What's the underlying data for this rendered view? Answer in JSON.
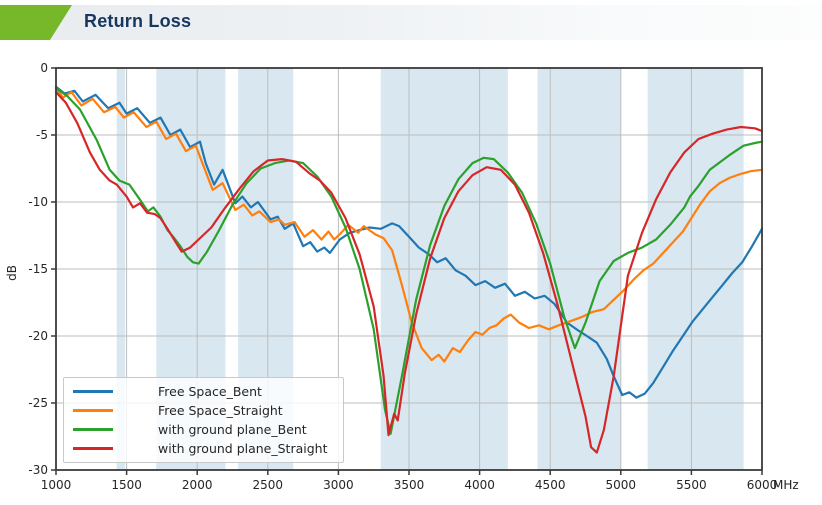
{
  "header": {
    "title": "Return Loss",
    "accent_color": "#76b82a",
    "title_color": "#17375e"
  },
  "chart_data": {
    "type": "line",
    "title": "Return Loss",
    "ylabel": "dB",
    "x_unit": "MHz",
    "xlim": [
      1000,
      6000
    ],
    "ylim": [
      -30,
      0
    ],
    "x_ticks": [
      1000,
      1500,
      2000,
      2500,
      3000,
      3500,
      4000,
      4500,
      5000,
      5500,
      6000
    ],
    "y_ticks": [
      0,
      -5,
      -10,
      -15,
      -20,
      -25,
      -30
    ],
    "grid": true,
    "grid_color": "#bdbdbd",
    "frame_color": "#3a3a3a",
    "band_color": "#d9e7f0",
    "bands_mhz": [
      [
        1430,
        1490
      ],
      [
        1710,
        2200
      ],
      [
        2290,
        2680
      ],
      [
        3300,
        4200
      ],
      [
        4410,
        5000
      ],
      [
        5190,
        5870
      ]
    ],
    "legend_position": "lower left",
    "series": [
      {
        "name": "Free Space_Bent",
        "color": "#1f77b4",
        "points": [
          [
            1000,
            -1.4
          ],
          [
            1060,
            -1.9
          ],
          [
            1130,
            -1.7
          ],
          [
            1190,
            -2.5
          ],
          [
            1280,
            -2.0
          ],
          [
            1370,
            -3.0
          ],
          [
            1450,
            -2.6
          ],
          [
            1500,
            -3.4
          ],
          [
            1575,
            -3.0
          ],
          [
            1665,
            -4.1
          ],
          [
            1740,
            -3.7
          ],
          [
            1810,
            -5.0
          ],
          [
            1880,
            -4.6
          ],
          [
            1950,
            -5.9
          ],
          [
            2020,
            -5.5
          ],
          [
            2060,
            -7.1
          ],
          [
            2120,
            -8.7
          ],
          [
            2180,
            -7.6
          ],
          [
            2270,
            -10.1
          ],
          [
            2320,
            -9.6
          ],
          [
            2380,
            -10.4
          ],
          [
            2430,
            -10.0
          ],
          [
            2520,
            -11.3
          ],
          [
            2570,
            -11.1
          ],
          [
            2620,
            -12.0
          ],
          [
            2680,
            -11.6
          ],
          [
            2750,
            -13.3
          ],
          [
            2800,
            -13.0
          ],
          [
            2850,
            -13.7
          ],
          [
            2900,
            -13.4
          ],
          [
            2940,
            -13.8
          ],
          [
            3010,
            -12.8
          ],
          [
            3080,
            -12.3
          ],
          [
            3150,
            -12.1
          ],
          [
            3220,
            -11.9
          ],
          [
            3300,
            -12.0
          ],
          [
            3380,
            -11.6
          ],
          [
            3430,
            -11.8
          ],
          [
            3500,
            -12.6
          ],
          [
            3570,
            -13.4
          ],
          [
            3640,
            -13.9
          ],
          [
            3700,
            -14.5
          ],
          [
            3760,
            -14.2
          ],
          [
            3830,
            -15.1
          ],
          [
            3900,
            -15.5
          ],
          [
            3970,
            -16.2
          ],
          [
            4040,
            -15.9
          ],
          [
            4110,
            -16.4
          ],
          [
            4180,
            -16.1
          ],
          [
            4250,
            -17.0
          ],
          [
            4320,
            -16.7
          ],
          [
            4390,
            -17.2
          ],
          [
            4460,
            -17.0
          ],
          [
            4530,
            -17.6
          ],
          [
            4620,
            -19.0
          ],
          [
            4700,
            -19.6
          ],
          [
            4760,
            -20.0
          ],
          [
            4830,
            -20.5
          ],
          [
            4900,
            -21.7
          ],
          [
            4950,
            -23.0
          ],
          [
            5010,
            -24.4
          ],
          [
            5060,
            -24.2
          ],
          [
            5110,
            -24.6
          ],
          [
            5170,
            -24.3
          ],
          [
            5230,
            -23.5
          ],
          [
            5300,
            -22.3
          ],
          [
            5370,
            -21.1
          ],
          [
            5440,
            -20.0
          ],
          [
            5510,
            -18.9
          ],
          [
            5580,
            -18.0
          ],
          [
            5650,
            -17.1
          ],
          [
            5720,
            -16.2
          ],
          [
            5790,
            -15.3
          ],
          [
            5860,
            -14.5
          ],
          [
            5930,
            -13.3
          ],
          [
            6000,
            -12.0
          ]
        ]
      },
      {
        "name": "Free Space_Straight",
        "color": "#ff7f0e",
        "points": [
          [
            1000,
            -1.5
          ],
          [
            1050,
            -2.2
          ],
          [
            1110,
            -1.8
          ],
          [
            1180,
            -2.8
          ],
          [
            1260,
            -2.3
          ],
          [
            1340,
            -3.3
          ],
          [
            1420,
            -2.9
          ],
          [
            1480,
            -3.7
          ],
          [
            1550,
            -3.3
          ],
          [
            1640,
            -4.4
          ],
          [
            1710,
            -4.0
          ],
          [
            1780,
            -5.3
          ],
          [
            1850,
            -4.9
          ],
          [
            1920,
            -6.2
          ],
          [
            1990,
            -5.8
          ],
          [
            2030,
            -6.9
          ],
          [
            2110,
            -9.1
          ],
          [
            2180,
            -8.6
          ],
          [
            2270,
            -10.6
          ],
          [
            2330,
            -10.2
          ],
          [
            2390,
            -11.0
          ],
          [
            2440,
            -10.7
          ],
          [
            2520,
            -11.5
          ],
          [
            2580,
            -11.3
          ],
          [
            2620,
            -11.7
          ],
          [
            2690,
            -11.5
          ],
          [
            2760,
            -12.6
          ],
          [
            2820,
            -12.1
          ],
          [
            2880,
            -12.8
          ],
          [
            2930,
            -12.2
          ],
          [
            2970,
            -12.8
          ],
          [
            3020,
            -12.3
          ],
          [
            3070,
            -11.7
          ],
          [
            3140,
            -12.3
          ],
          [
            3180,
            -11.8
          ],
          [
            3260,
            -12.4
          ],
          [
            3320,
            -12.7
          ],
          [
            3380,
            -13.6
          ],
          [
            3450,
            -16.2
          ],
          [
            3520,
            -19.0
          ],
          [
            3590,
            -20.9
          ],
          [
            3660,
            -21.8
          ],
          [
            3710,
            -21.4
          ],
          [
            3750,
            -21.9
          ],
          [
            3810,
            -20.9
          ],
          [
            3860,
            -21.2
          ],
          [
            3920,
            -20.3
          ],
          [
            3970,
            -19.7
          ],
          [
            4020,
            -19.9
          ],
          [
            4070,
            -19.4
          ],
          [
            4120,
            -19.2
          ],
          [
            4170,
            -18.7
          ],
          [
            4220,
            -18.4
          ],
          [
            4280,
            -19.0
          ],
          [
            4350,
            -19.4
          ],
          [
            4420,
            -19.2
          ],
          [
            4490,
            -19.5
          ],
          [
            4560,
            -19.2
          ],
          [
            4640,
            -18.9
          ],
          [
            4720,
            -18.6
          ],
          [
            4800,
            -18.2
          ],
          [
            4880,
            -18.0
          ],
          [
            4950,
            -17.3
          ],
          [
            5020,
            -16.6
          ],
          [
            5090,
            -15.8
          ],
          [
            5160,
            -15.1
          ],
          [
            5230,
            -14.6
          ],
          [
            5300,
            -13.8
          ],
          [
            5370,
            -13.0
          ],
          [
            5440,
            -12.2
          ],
          [
            5500,
            -11.2
          ],
          [
            5560,
            -10.2
          ],
          [
            5630,
            -9.2
          ],
          [
            5700,
            -8.6
          ],
          [
            5770,
            -8.2
          ],
          [
            5850,
            -7.9
          ],
          [
            5920,
            -7.7
          ],
          [
            6000,
            -7.6
          ]
        ]
      },
      {
        "name": "with ground plane_Bent",
        "color": "#2ca02c",
        "points": [
          [
            1000,
            -1.5
          ],
          [
            1080,
            -2.1
          ],
          [
            1170,
            -3.1
          ],
          [
            1290,
            -5.4
          ],
          [
            1380,
            -7.6
          ],
          [
            1450,
            -8.4
          ],
          [
            1520,
            -8.7
          ],
          [
            1600,
            -9.9
          ],
          [
            1650,
            -10.7
          ],
          [
            1690,
            -10.4
          ],
          [
            1740,
            -11.1
          ],
          [
            1790,
            -12.1
          ],
          [
            1830,
            -12.6
          ],
          [
            1880,
            -13.3
          ],
          [
            1930,
            -14.1
          ],
          [
            1970,
            -14.5
          ],
          [
            2010,
            -14.6
          ],
          [
            2070,
            -13.7
          ],
          [
            2150,
            -12.2
          ],
          [
            2250,
            -10.2
          ],
          [
            2350,
            -8.6
          ],
          [
            2450,
            -7.5
          ],
          [
            2550,
            -7.1
          ],
          [
            2650,
            -6.9
          ],
          [
            2750,
            -7.1
          ],
          [
            2850,
            -8.1
          ],
          [
            2950,
            -9.6
          ],
          [
            3050,
            -11.9
          ],
          [
            3150,
            -15.0
          ],
          [
            3250,
            -19.5
          ],
          [
            3330,
            -25.5
          ],
          [
            3370,
            -27.3
          ],
          [
            3450,
            -23.0
          ],
          [
            3550,
            -17.3
          ],
          [
            3650,
            -13.2
          ],
          [
            3750,
            -10.3
          ],
          [
            3850,
            -8.3
          ],
          [
            3950,
            -7.1
          ],
          [
            4030,
            -6.7
          ],
          [
            4100,
            -6.8
          ],
          [
            4200,
            -7.8
          ],
          [
            4300,
            -9.3
          ],
          [
            4400,
            -11.6
          ],
          [
            4500,
            -14.6
          ],
          [
            4600,
            -18.6
          ],
          [
            4675,
            -20.9
          ],
          [
            4750,
            -19.0
          ],
          [
            4850,
            -15.9
          ],
          [
            4950,
            -14.4
          ],
          [
            5050,
            -13.8
          ],
          [
            5150,
            -13.4
          ],
          [
            5250,
            -12.8
          ],
          [
            5350,
            -11.7
          ],
          [
            5450,
            -10.4
          ],
          [
            5490,
            -9.6
          ],
          [
            5550,
            -8.8
          ],
          [
            5630,
            -7.6
          ],
          [
            5770,
            -6.5
          ],
          [
            5870,
            -5.8
          ],
          [
            5950,
            -5.6
          ],
          [
            6000,
            -5.5
          ]
        ]
      },
      {
        "name": "with ground plane_Straight",
        "color": "#d62728",
        "points": [
          [
            1000,
            -1.8
          ],
          [
            1070,
            -2.6
          ],
          [
            1150,
            -4.1
          ],
          [
            1240,
            -6.3
          ],
          [
            1310,
            -7.6
          ],
          [
            1380,
            -8.4
          ],
          [
            1430,
            -8.7
          ],
          [
            1500,
            -9.6
          ],
          [
            1545,
            -10.4
          ],
          [
            1595,
            -10.1
          ],
          [
            1645,
            -10.8
          ],
          [
            1700,
            -10.9
          ],
          [
            1740,
            -11.2
          ],
          [
            1790,
            -12.0
          ],
          [
            1860,
            -13.2
          ],
          [
            1890,
            -13.7
          ],
          [
            1950,
            -13.4
          ],
          [
            2010,
            -12.8
          ],
          [
            2100,
            -11.9
          ],
          [
            2200,
            -10.4
          ],
          [
            2300,
            -9.0
          ],
          [
            2400,
            -7.7
          ],
          [
            2500,
            -6.9
          ],
          [
            2600,
            -6.8
          ],
          [
            2700,
            -7.0
          ],
          [
            2800,
            -7.9
          ],
          [
            2870,
            -8.4
          ],
          [
            2950,
            -9.3
          ],
          [
            3050,
            -11.2
          ],
          [
            3150,
            -13.9
          ],
          [
            3250,
            -17.8
          ],
          [
            3320,
            -23.0
          ],
          [
            3355,
            -27.4
          ],
          [
            3395,
            -25.8
          ],
          [
            3420,
            -26.3
          ],
          [
            3470,
            -22.8
          ],
          [
            3550,
            -18.4
          ],
          [
            3650,
            -14.2
          ],
          [
            3750,
            -11.2
          ],
          [
            3850,
            -9.2
          ],
          [
            3950,
            -8.0
          ],
          [
            4050,
            -7.4
          ],
          [
            4150,
            -7.6
          ],
          [
            4250,
            -8.7
          ],
          [
            4350,
            -10.8
          ],
          [
            4450,
            -13.8
          ],
          [
            4550,
            -17.6
          ],
          [
            4650,
            -21.8
          ],
          [
            4750,
            -26.0
          ],
          [
            4790,
            -28.3
          ],
          [
            4830,
            -28.7
          ],
          [
            4880,
            -27.0
          ],
          [
            4950,
            -23.0
          ],
          [
            5050,
            -15.5
          ],
          [
            5150,
            -12.3
          ],
          [
            5250,
            -9.8
          ],
          [
            5350,
            -7.8
          ],
          [
            5450,
            -6.3
          ],
          [
            5550,
            -5.3
          ],
          [
            5650,
            -4.9
          ],
          [
            5750,
            -4.6
          ],
          [
            5850,
            -4.4
          ],
          [
            5950,
            -4.5
          ],
          [
            6000,
            -4.7
          ]
        ]
      }
    ]
  }
}
